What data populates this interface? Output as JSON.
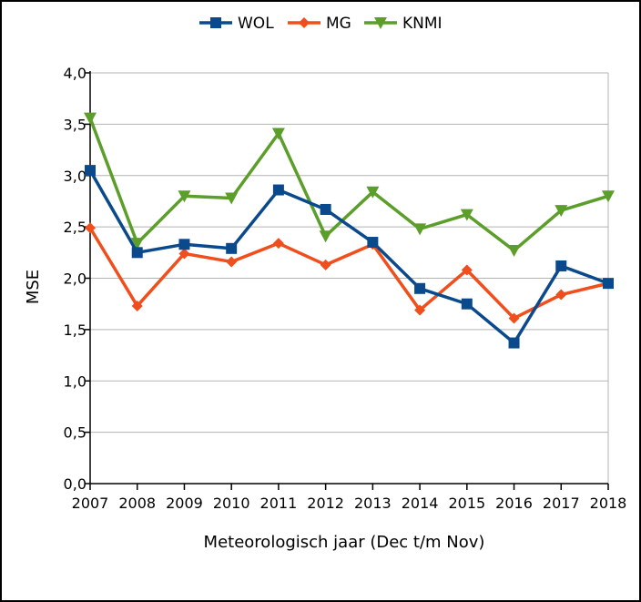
{
  "chart_data": {
    "type": "line",
    "title": "",
    "xlabel": "Meteorologisch jaar (Dec t/m Nov)",
    "ylabel": "MSE",
    "x": [
      "2007",
      "2008",
      "2009",
      "2010",
      "2011",
      "2012",
      "2013",
      "2014",
      "2015",
      "2016",
      "2017",
      "2018"
    ],
    "ylim": [
      0,
      4.0
    ],
    "yticks": [
      "0,0",
      "0,5",
      "1,0",
      "1,5",
      "2,0",
      "2,5",
      "3,0",
      "3,5",
      "4,0"
    ],
    "grid": "horizontal",
    "legend_position": "top",
    "series": [
      {
        "name": "WOL",
        "color": "#0a4a8c",
        "marker": "square",
        "values": [
          3.05,
          2.25,
          2.33,
          2.29,
          2.86,
          2.67,
          2.35,
          1.9,
          1.75,
          1.37,
          2.12,
          1.95
        ]
      },
      {
        "name": "MG",
        "color": "#f04e1c",
        "marker": "diamond",
        "values": [
          2.49,
          1.73,
          2.24,
          2.16,
          2.34,
          2.13,
          2.33,
          1.69,
          2.08,
          1.61,
          1.84,
          1.95
        ]
      },
      {
        "name": "KNMI",
        "color": "#5b9e2a",
        "marker": "triangle-down",
        "values": [
          3.56,
          2.34,
          2.8,
          2.78,
          3.41,
          2.41,
          2.84,
          2.48,
          2.62,
          2.27,
          2.66,
          2.8
        ]
      }
    ]
  }
}
